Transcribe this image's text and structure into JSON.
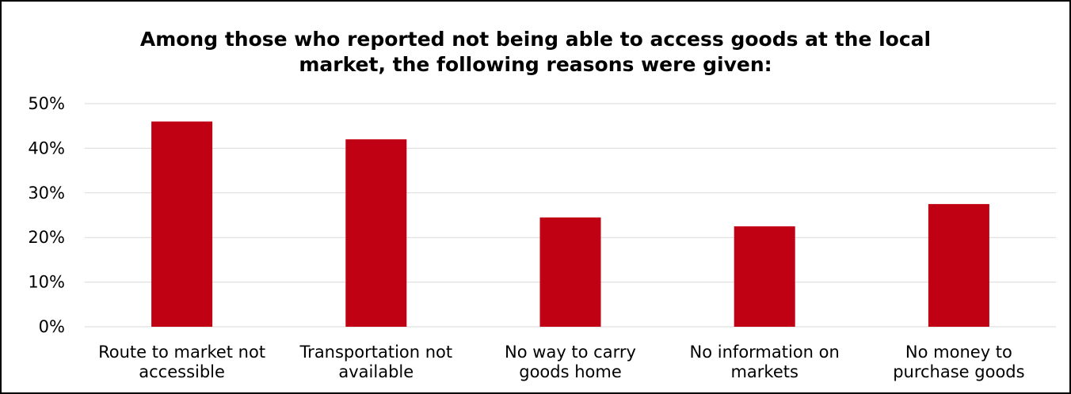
{
  "chart_data": {
    "type": "bar",
    "title_lines": [
      "Among those who reported not being able to access goods at the local",
      "market, the following reasons were given:"
    ],
    "categories": [
      [
        "Route to market not",
        "accessible"
      ],
      [
        "Transportation not",
        "available"
      ],
      [
        "No way to carry",
        "goods home"
      ],
      [
        "No information on",
        "markets"
      ],
      [
        "No money to",
        "purchase goods"
      ]
    ],
    "values": [
      46,
      42,
      24.5,
      22.5,
      27.5
    ],
    "ylim": [
      0,
      50
    ],
    "yticks": [
      "0%",
      "10%",
      "20%",
      "30%",
      "40%",
      "50%"
    ],
    "grid": true,
    "bar_color": "#c00013",
    "grid_color": "#d9d9d9"
  }
}
